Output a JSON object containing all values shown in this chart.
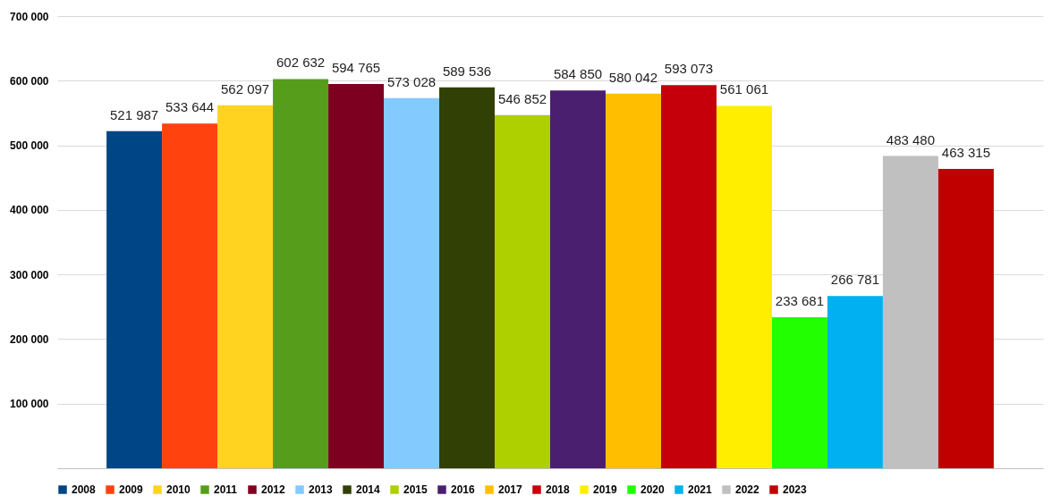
{
  "chart_data": {
    "type": "bar",
    "categories": [
      null
    ],
    "series": [
      {
        "name": "2008",
        "color": "#004586",
        "values": [
          521987
        ]
      },
      {
        "name": "2009",
        "color": "#ff420e",
        "values": [
          533644
        ]
      },
      {
        "name": "2010",
        "color": "#ffd320",
        "values": [
          562097
        ]
      },
      {
        "name": "2011",
        "color": "#579d1c",
        "values": [
          602632
        ]
      },
      {
        "name": "2012",
        "color": "#7e0021",
        "values": [
          594765
        ]
      },
      {
        "name": "2013",
        "color": "#83caff",
        "values": [
          573028
        ]
      },
      {
        "name": "2014",
        "color": "#314004",
        "values": [
          589536
        ]
      },
      {
        "name": "2015",
        "color": "#aecf00",
        "values": [
          546852
        ]
      },
      {
        "name": "2016",
        "color": "#4b1f6f",
        "values": [
          584850
        ]
      },
      {
        "name": "2017",
        "color": "#ffbf00",
        "values": [
          580042
        ]
      },
      {
        "name": "2018",
        "color": "#c5000b",
        "values": [
          593073
        ]
      },
      {
        "name": "2019",
        "color": "#ffee00",
        "values": [
          561061
        ]
      },
      {
        "name": "2020",
        "color": "#22ff00",
        "values": [
          233681
        ]
      },
      {
        "name": "2021",
        "color": "#00b0f0",
        "values": [
          266781
        ]
      },
      {
        "name": "2022",
        "color": "#c0c0c0",
        "values": [
          483480
        ]
      },
      {
        "name": "2023",
        "color": "#c00000",
        "values": [
          463315
        ]
      }
    ],
    "ylim": [
      0,
      700000
    ],
    "yticks": [
      {
        "value": 100000,
        "label": "100 000"
      },
      {
        "value": 200000,
        "label": "200 000"
      },
      {
        "value": 300000,
        "label": "300 000"
      },
      {
        "value": 400000,
        "label": "400 000"
      },
      {
        "value": 500000,
        "label": "500 000"
      },
      {
        "value": 600000,
        "label": "600 000"
      },
      {
        "value": 700000,
        "label": "700 000"
      }
    ],
    "grid": "y",
    "legend": "bottom",
    "tick_labels": "y",
    "data_labels": true
  }
}
